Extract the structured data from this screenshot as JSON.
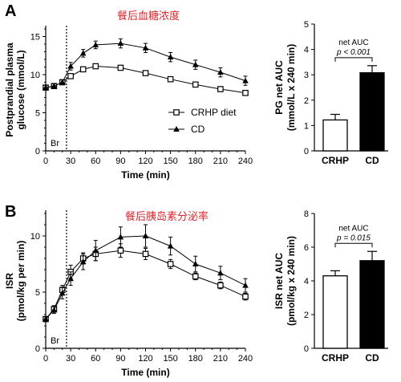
{
  "chart_data": [
    {
      "panel": "A",
      "type": "line",
      "title": "餐后血糖浓度",
      "ylabel": [
        "Postprandial plasma",
        "glucose (mmol/L)"
      ],
      "xlabel": "Time (min)",
      "x": [
        0,
        10,
        20,
        30,
        45,
        60,
        90,
        120,
        150,
        180,
        210,
        240
      ],
      "x_ticks": [
        0,
        30,
        60,
        90,
        120,
        150,
        180,
        210,
        240
      ],
      "y_ticks": [
        0,
        5,
        10,
        15
      ],
      "xlim": [
        0,
        240
      ],
      "ylim": [
        0,
        16
      ],
      "marker_label": "Br",
      "marker_x": 25,
      "legend_position": "right",
      "series": [
        {
          "name": "CRHP diet",
          "marker": "square-open",
          "values": [
            8.3,
            8.5,
            9.0,
            9.8,
            10.7,
            11.1,
            10.9,
            10.2,
            9.4,
            8.7,
            8.1,
            7.6
          ],
          "errors": [
            0.3,
            0.3,
            0.3,
            0.3,
            0.3,
            0.3,
            0.3,
            0.3,
            0.3,
            0.3,
            0.3,
            0.3
          ]
        },
        {
          "name": "CD",
          "marker": "triangle-filled",
          "values": [
            8.3,
            8.5,
            9.0,
            11.1,
            12.8,
            13.9,
            14.1,
            13.5,
            12.3,
            11.3,
            10.3,
            9.2
          ],
          "errors": [
            0.3,
            0.3,
            0.3,
            0.5,
            0.5,
            0.5,
            0.6,
            0.6,
            0.6,
            0.6,
            0.6,
            0.6
          ]
        }
      ]
    },
    {
      "panel": "A",
      "type": "bar",
      "ylabel": [
        "PG net AUC",
        "(mmol/L x 240 min)"
      ],
      "categories": [
        "CRHP",
        "CD"
      ],
      "values": [
        1.22,
        3.08
      ],
      "errors": [
        0.22,
        0.28
      ],
      "y_ticks": [
        0,
        1,
        2,
        3,
        4,
        5
      ],
      "ylim": [
        0,
        5
      ],
      "annotation_title": "net AUC",
      "annotation_p": "p < 0.001",
      "bar_colors": [
        "#ffffff",
        "#000000"
      ]
    },
    {
      "panel": "B",
      "type": "line",
      "title": "餐后胰岛素分泌率",
      "ylabel": [
        "ISR",
        "(pmol/kg per min)"
      ],
      "xlabel": "Time (min)",
      "x": [
        0,
        10,
        20,
        30,
        45,
        60,
        90,
        120,
        150,
        180,
        210,
        240
      ],
      "x_ticks": [
        0,
        30,
        60,
        90,
        120,
        150,
        180,
        210,
        240
      ],
      "y_ticks": [
        0,
        5,
        10
      ],
      "xlim": [
        0,
        240
      ],
      "ylim": [
        0,
        12
      ],
      "marker_label": "Br",
      "marker_x": 25,
      "series": [
        {
          "name": "CRHP diet",
          "marker": "square-open",
          "values": [
            2.6,
            3.5,
            5.2,
            6.8,
            8.0,
            8.4,
            8.7,
            8.4,
            7.5,
            6.4,
            5.6,
            4.6
          ],
          "errors": [
            0.2,
            0.3,
            0.4,
            0.6,
            0.5,
            0.6,
            0.6,
            0.5,
            0.4,
            0.3,
            0.3,
            0.3
          ]
        },
        {
          "name": "CD",
          "marker": "triangle-filled",
          "values": [
            2.6,
            3.4,
            4.9,
            6.2,
            7.7,
            8.7,
            9.9,
            10.0,
            9.1,
            7.5,
            6.7,
            5.6
          ],
          "errors": [
            0.2,
            0.3,
            0.5,
            0.6,
            0.7,
            0.9,
            0.9,
            1.0,
            0.8,
            0.7,
            0.6,
            0.6
          ]
        }
      ]
    },
    {
      "panel": "B",
      "type": "bar",
      "ylabel": [
        "ISR net AUC",
        "(pmol/kg x 240 min)"
      ],
      "categories": [
        "CRHP",
        "CD"
      ],
      "values": [
        4.3,
        5.2
      ],
      "errors": [
        0.3,
        0.55
      ],
      "y_ticks": [
        0,
        2,
        4,
        6,
        8
      ],
      "ylim": [
        0,
        8
      ],
      "annotation_title": "net AUC",
      "annotation_p": "p = 0.015",
      "bar_colors": [
        "#ffffff",
        "#000000"
      ]
    }
  ]
}
